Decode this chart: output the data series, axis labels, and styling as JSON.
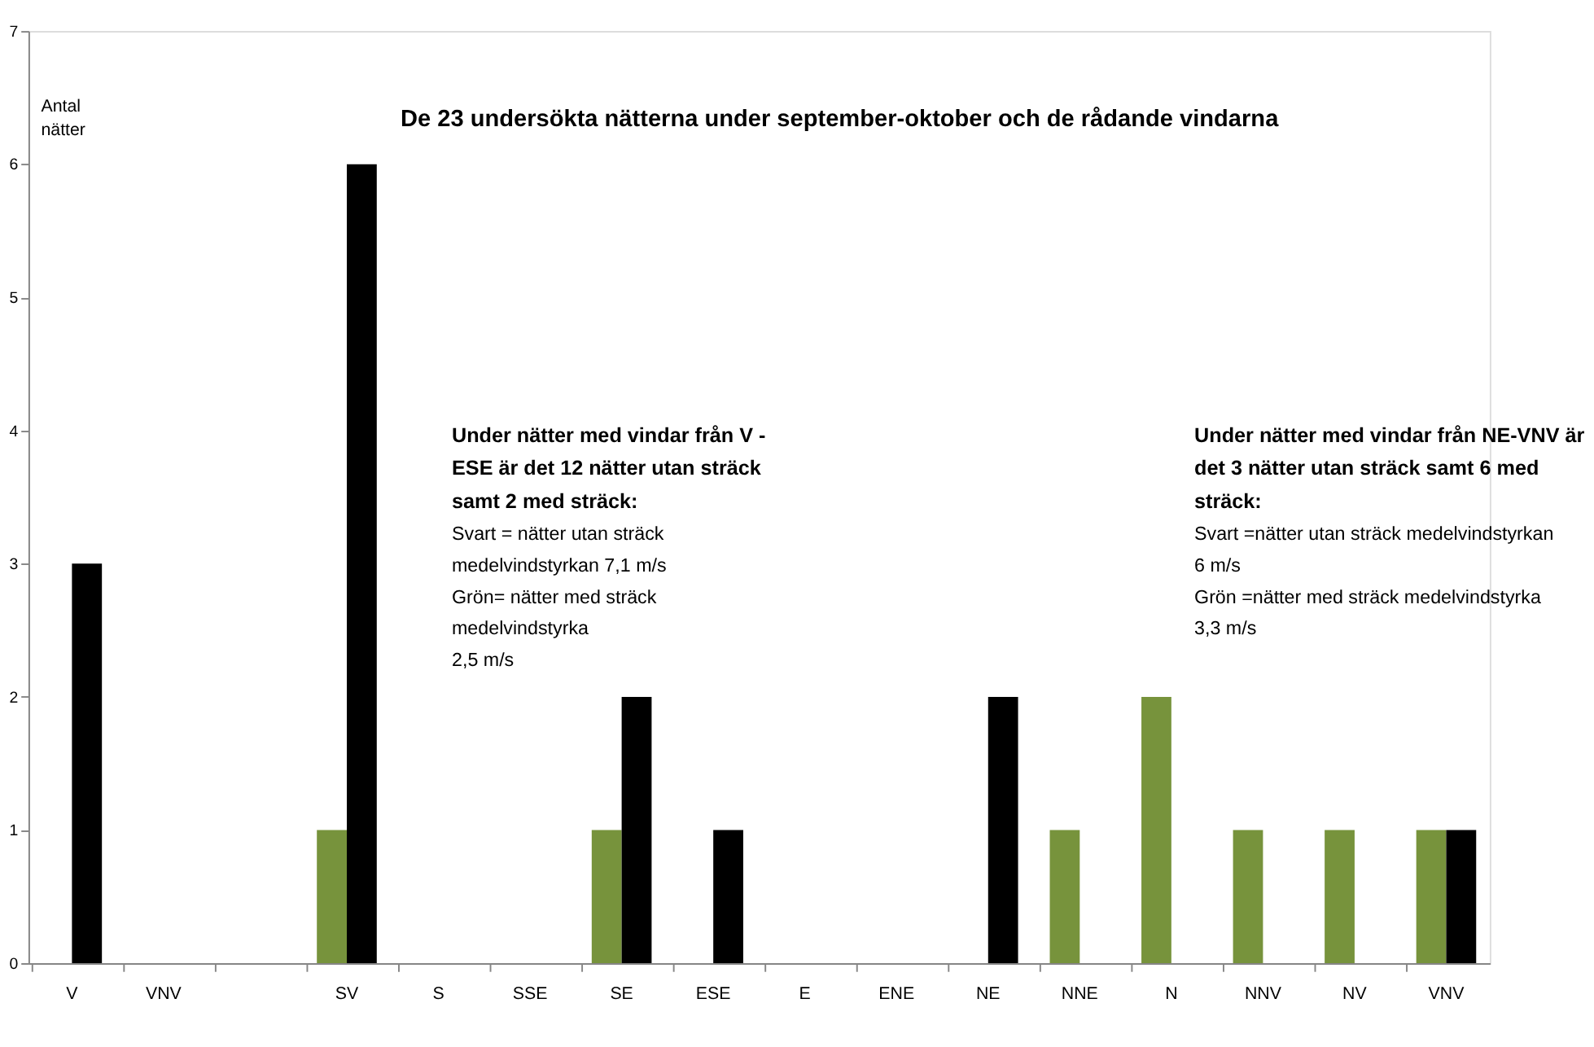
{
  "chart_data": {
    "type": "bar",
    "title": "De 23 undersökta nätterna under september-oktober och de rådande vindarna",
    "ylabel": "Antal nätter",
    "categories": [
      "V",
      "VNV",
      null,
      "SV",
      "S",
      "SSE",
      "SE",
      "ESE",
      "E",
      "ENE",
      "NE",
      "NNE",
      "N",
      "NNV",
      "NV",
      "VNV"
    ],
    "series": [
      {
        "color": "#77933c",
        "values": [
          0,
          0,
          0,
          1,
          0,
          0,
          1,
          0,
          0,
          0,
          0,
          1,
          2,
          1,
          1,
          1
        ]
      },
      {
        "color": "#000000",
        "values": [
          3,
          0,
          0,
          6,
          0,
          0,
          2,
          1,
          0,
          0,
          2,
          0,
          0,
          0,
          0,
          1
        ]
      }
    ],
    "ylim": [
      0,
      7
    ],
    "yticks": [
      0,
      1,
      2,
      3,
      4,
      5,
      6,
      7
    ],
    "grid": false,
    "legend": false,
    "annotations": [
      "Under nätter med vindar från V -\nESE är det 12 nätter utan sträck\nsamt 2 med sträck:\nSvart = nätter utan sträck\nmedelvindstyrkan 7,1 m/s\nGrön= nätter med sträck\nmedelvindstyrka\n2,5 m/s",
      "Under nätter med vindar från NE-VNV är\ndet 3 nätter utan sträck samt 6 med\nsträck:\nSvart =nätter utan sträck medelvindstyrkan\n6 m/s\nGrön =nätter med sträck medelvindstyrka\n3,3 m/s"
    ]
  }
}
